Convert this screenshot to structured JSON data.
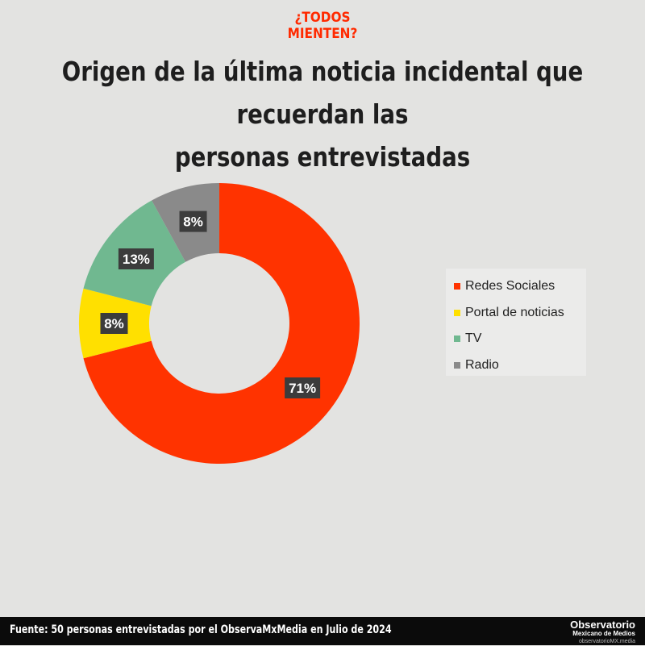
{
  "brand_tag": [
    "¿TODOS",
    "MIENTEN?"
  ],
  "title_lines": [
    "Origen de la última noticia incidental que recuerdan las",
    "personas entrevistadas"
  ],
  "chart_data": {
    "type": "pie",
    "style": "donut",
    "title": "Origen de la última noticia incidental que recuerdan las personas entrevistadas",
    "categories": [
      "Redes Sociales",
      "Portal de noticias",
      "TV",
      "Radio"
    ],
    "values": [
      71,
      8,
      13,
      8
    ],
    "labels": [
      "71%",
      "8%",
      "13%",
      "8%"
    ],
    "colors": [
      "#ff3300",
      "#ffe000",
      "#70b890",
      "#8a8a8a"
    ],
    "legend_position": "right"
  },
  "footer": {
    "source": "Fuente: 50 personas entrevistadas por el ObservaMxMedia en Julio de 2024",
    "logo_main": "Observatorio",
    "logo_sub": "Mexicano de Medios",
    "logo_url": "observatorioMX.media"
  }
}
